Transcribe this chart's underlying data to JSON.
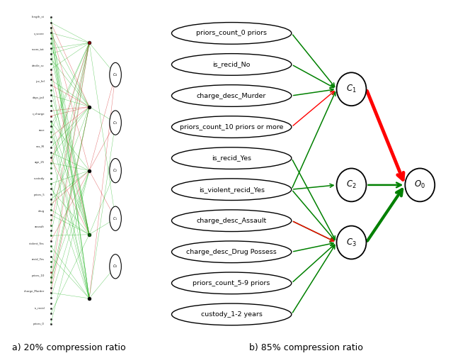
{
  "title_a": "a) 20% compression ratio",
  "title_b": "b) 85% compression ratio",
  "feature_nodes": [
    "priors_count_0 priors",
    "is_recid_No",
    "charge_desc_Murder",
    "priors_count_10 priors or more",
    "is_recid_Yes",
    "is_violent_recid_Yes",
    "charge_desc_Assault",
    "charge_desc_Drug Possess",
    "priors_count_5-9 priors",
    "custody_1-2 years"
  ],
  "edges_green_to_C1": [
    0,
    1,
    2,
    5
  ],
  "edges_red_to_C1": [
    3
  ],
  "edges_green_to_C2": [
    5
  ],
  "edges_green_to_C3": [
    4,
    5,
    6,
    7,
    8,
    9
  ],
  "edges_red_to_C3": [
    6
  ],
  "background_color": "#ffffff"
}
